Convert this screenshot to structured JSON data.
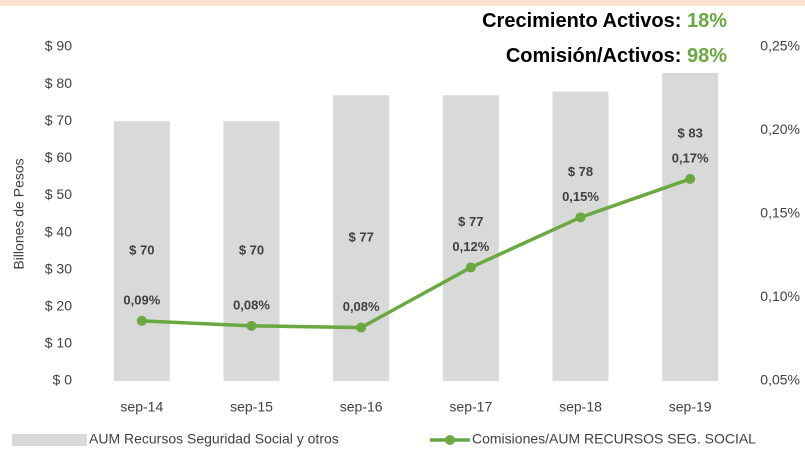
{
  "chart_data": {
    "type": "bar-line",
    "ylabel": "Billones de Pesos",
    "annotations": [
      {
        "text": "Crecimiento Activos:",
        "value": "18%"
      },
      {
        "text": "Comisión/Activos:",
        "value": "98%"
      }
    ],
    "categories": [
      "sep-14",
      "sep-15",
      "sep-16",
      "sep-17",
      "sep-18",
      "sep-19"
    ],
    "series": [
      {
        "name": "AUM Recursos Seguridad Social y otros",
        "type": "bar",
        "color": "#d9d9d9",
        "values": [
          70,
          70,
          77,
          77,
          78,
          83
        ],
        "value_labels": [
          "$ 70",
          "$ 70",
          "$ 77",
          "$ 77",
          "$ 78",
          "$ 83"
        ]
      },
      {
        "name": "Comisiones/AUM RECURSOS SEG. SOCIAL",
        "type": "line",
        "axis": "y2",
        "color": "#6aa842",
        "values": [
          0.086,
          0.083,
          0.082,
          0.118,
          0.148,
          0.171
        ],
        "value_labels": [
          "0,09%",
          "0,08%",
          "0,08%",
          "0,12%",
          "0,15%",
          "0,17%"
        ]
      }
    ],
    "ylim": [
      0,
      90
    ],
    "yticks": [
      {
        "value": 0,
        "label": "$ 0"
      },
      {
        "value": 10,
        "label": "$ 10"
      },
      {
        "value": 20,
        "label": "$ 20"
      },
      {
        "value": 30,
        "label": "$ 30"
      },
      {
        "value": 40,
        "label": "$ 40"
      },
      {
        "value": 50,
        "label": "$ 50"
      },
      {
        "value": 60,
        "label": "$ 60"
      },
      {
        "value": 70,
        "label": "$ 70"
      },
      {
        "value": 80,
        "label": "$ 80"
      },
      {
        "value": 90,
        "label": "$ 90"
      }
    ],
    "y2lim": [
      0.05,
      0.25
    ],
    "y2ticks": [
      {
        "value": 0.05,
        "label": "0,05%"
      },
      {
        "value": 0.1,
        "label": "0,10%"
      },
      {
        "value": 0.15,
        "label": "0,15%"
      },
      {
        "value": 0.2,
        "label": "0,20%"
      },
      {
        "value": 0.25,
        "label": "0,25%"
      }
    ],
    "grid": false
  }
}
